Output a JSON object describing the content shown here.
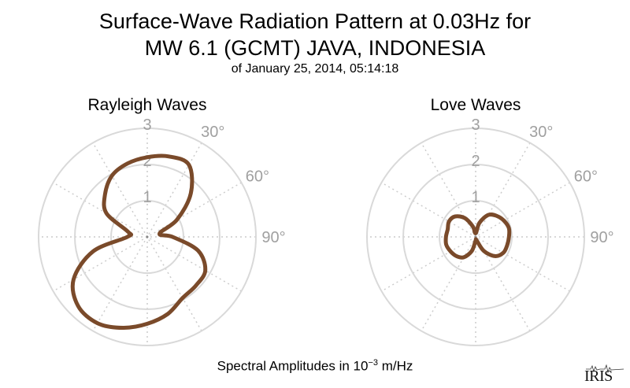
{
  "title_line1": "Surface-Wave Radiation Pattern at 0.03Hz for",
  "title_line2": "MW 6.1 (GCMT) JAVA, INDONESIA",
  "subtitle": "of January 25, 2014, 05:14:18",
  "footer_prefix": "Spectral Amplitudes in 10",
  "footer_exponent": "−3",
  "footer_suffix": " m/Hz",
  "logo_text": "IRIS",
  "colors": {
    "curve": "#7a4a2a",
    "ring": "#d9d9d9",
    "tick": "#a0a0a0"
  },
  "chart_data": [
    {
      "type": "polar",
      "title": "Rayleigh Waves",
      "radial_ticks": [
        "1",
        "2",
        "3"
      ],
      "radial_range": [
        0,
        3
      ],
      "angle_ticks": [
        "30°",
        "60°",
        "90°"
      ],
      "angle_convention": "clockwise from north (top)",
      "series": [
        {
          "theta_deg": [
            0,
            15,
            30,
            45,
            60,
            75,
            90,
            105,
            120,
            135,
            150,
            165,
            180,
            195,
            210,
            225,
            240,
            255,
            270,
            285,
            300,
            315,
            330,
            345
          ],
          "r": [
            2.2,
            2.3,
            2.3,
            1.7,
            0.95,
            0.35,
            0.7,
            1.45,
            1.85,
            1.9,
            1.95,
            2.2,
            2.4,
            2.6,
            2.75,
            2.7,
            2.35,
            1.55,
            0.55,
            0.55,
            1.3,
            1.65,
            1.95,
            2.1
          ]
        }
      ]
    },
    {
      "type": "polar",
      "title": "Love Waves",
      "radial_ticks": [
        "1",
        "2",
        "3"
      ],
      "radial_range": [
        0,
        3
      ],
      "angle_ticks": [
        "30°",
        "60°",
        "90°"
      ],
      "angle_convention": "clockwise from north (top)",
      "series": [
        {
          "theta_deg": [
            0,
            15,
            30,
            45,
            60,
            75,
            90,
            105,
            120,
            135,
            150,
            165,
            180,
            195,
            210,
            225,
            240,
            255,
            270,
            285,
            300,
            315,
            330,
            345
          ],
          "r": [
            0.1,
            0.4,
            0.7,
            0.82,
            0.9,
            0.95,
            0.92,
            0.9,
            0.88,
            0.75,
            0.45,
            0.1,
            0.1,
            0.4,
            0.65,
            0.75,
            0.8,
            0.84,
            0.82,
            0.8,
            0.85,
            0.8,
            0.6,
            0.3
          ]
        }
      ]
    }
  ]
}
